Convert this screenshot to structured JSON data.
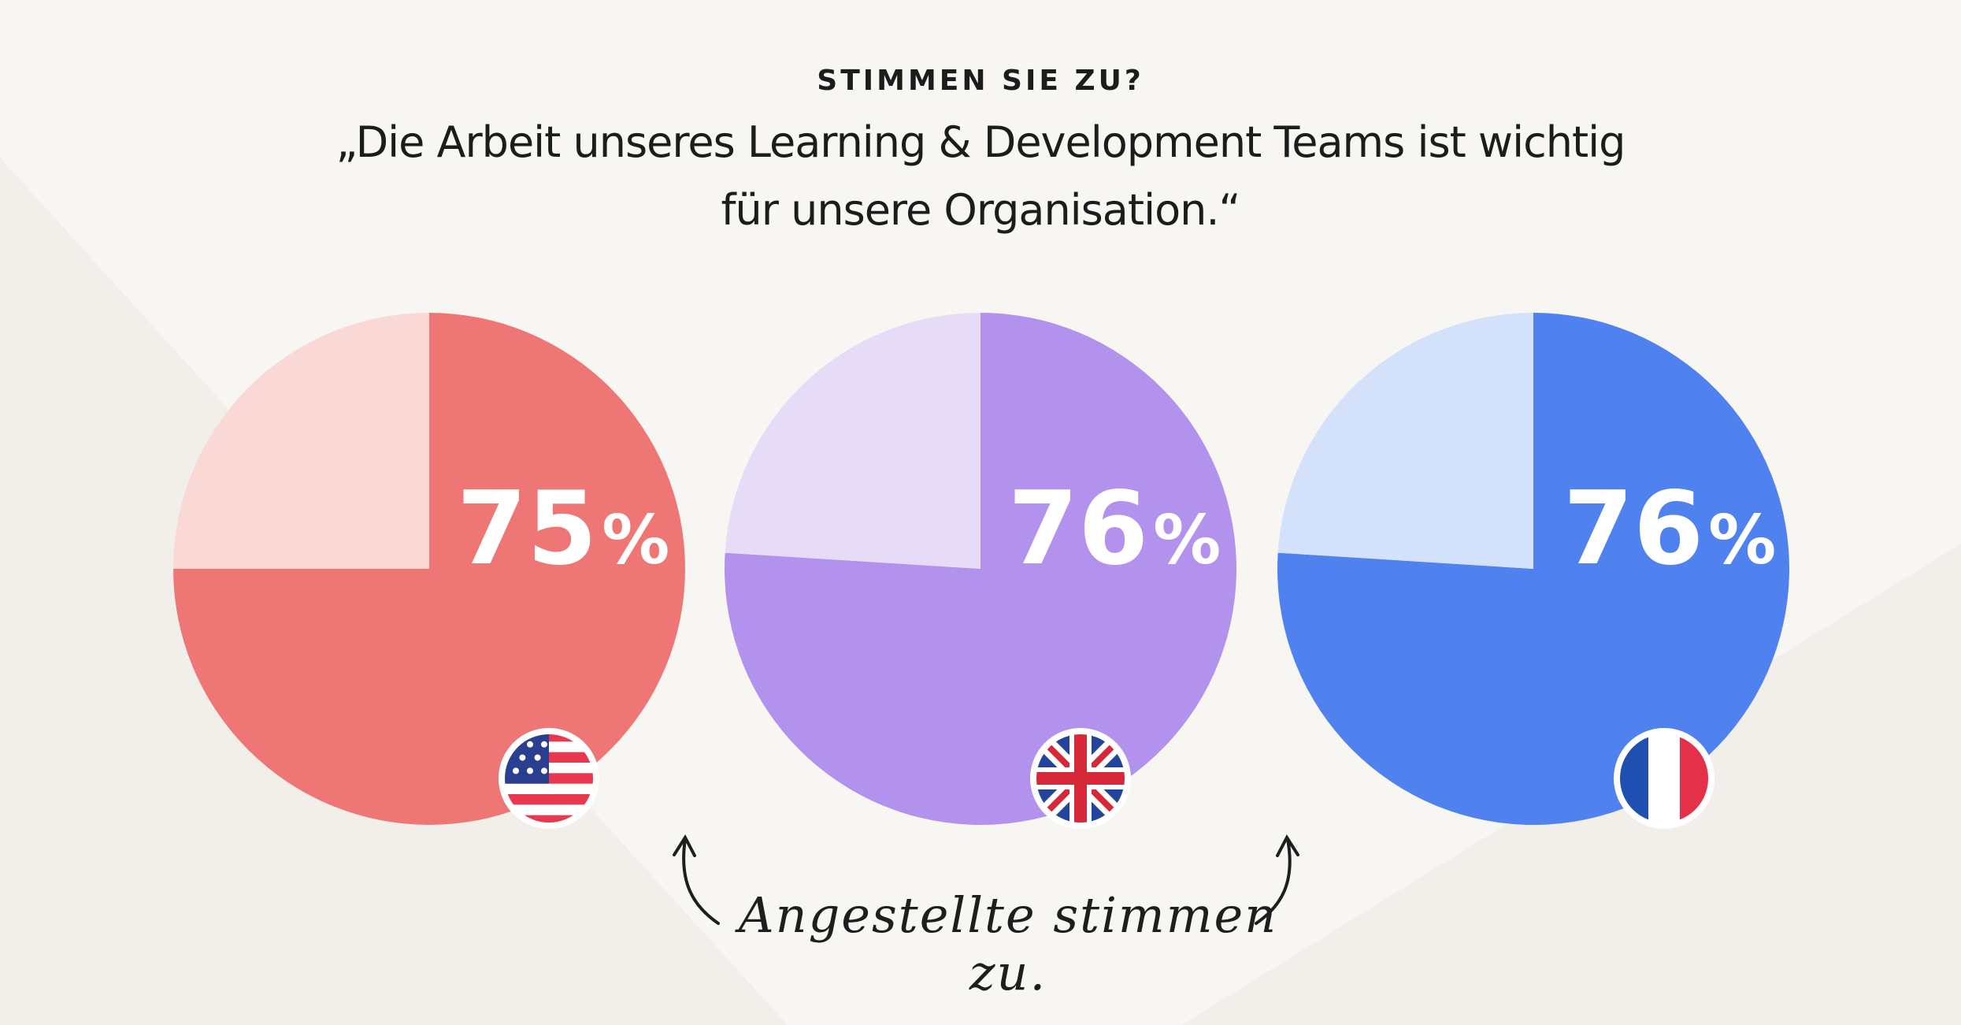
{
  "header": {
    "eyebrow": "STIMMEN SIE ZU?",
    "quote_line1": "„Die Arbeit unseres  Learning & Development Teams ist wichtig",
    "quote_line2": "für unsere Organisation.“"
  },
  "chart_data": [
    {
      "type": "pie",
      "title": "",
      "country_flag_icon": "us-flag-icon",
      "value_label": "75",
      "percent_sign": "%",
      "slices": [
        {
          "label": "",
          "value": 75,
          "color": "#ee7675"
        },
        {
          "label": "",
          "value": 25,
          "color": "#f9d8d6"
        }
      ]
    },
    {
      "type": "pie",
      "title": "",
      "country_flag_icon": "uk-flag-icon",
      "value_label": "76",
      "percent_sign": "%",
      "slices": [
        {
          "label": "",
          "value": 76,
          "color": "#b392ee"
        },
        {
          "label": "",
          "value": 24,
          "color": "#e6dcf8"
        }
      ]
    },
    {
      "type": "pie",
      "title": "",
      "country_flag_icon": "france-flag-icon",
      "value_label": "76",
      "percent_sign": "%",
      "slices": [
        {
          "label": "",
          "value": 76,
          "color": "#4f82ef"
        },
        {
          "label": "",
          "value": 24,
          "color": "#d3e1fb"
        }
      ]
    }
  ],
  "annotation": {
    "text": "Angestellte stimmen zu."
  }
}
